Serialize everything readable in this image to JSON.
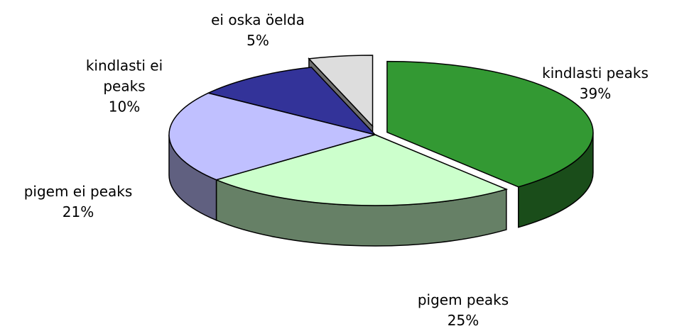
{
  "chart_data": {
    "type": "pie",
    "categories": [
      "kindlasti peaks",
      "pigem peaks",
      "pigem ei peaks",
      "kindlasti ei peaks",
      "ei oska öelda"
    ],
    "values": [
      39,
      25,
      21,
      10,
      5
    ],
    "value_labels": [
      "39%",
      "25%",
      "21%",
      "10%",
      "5%"
    ],
    "colors": [
      "#339933",
      "#ccffcc",
      "#c0c0ff",
      "#333399",
      "#dddddd"
    ]
  }
}
